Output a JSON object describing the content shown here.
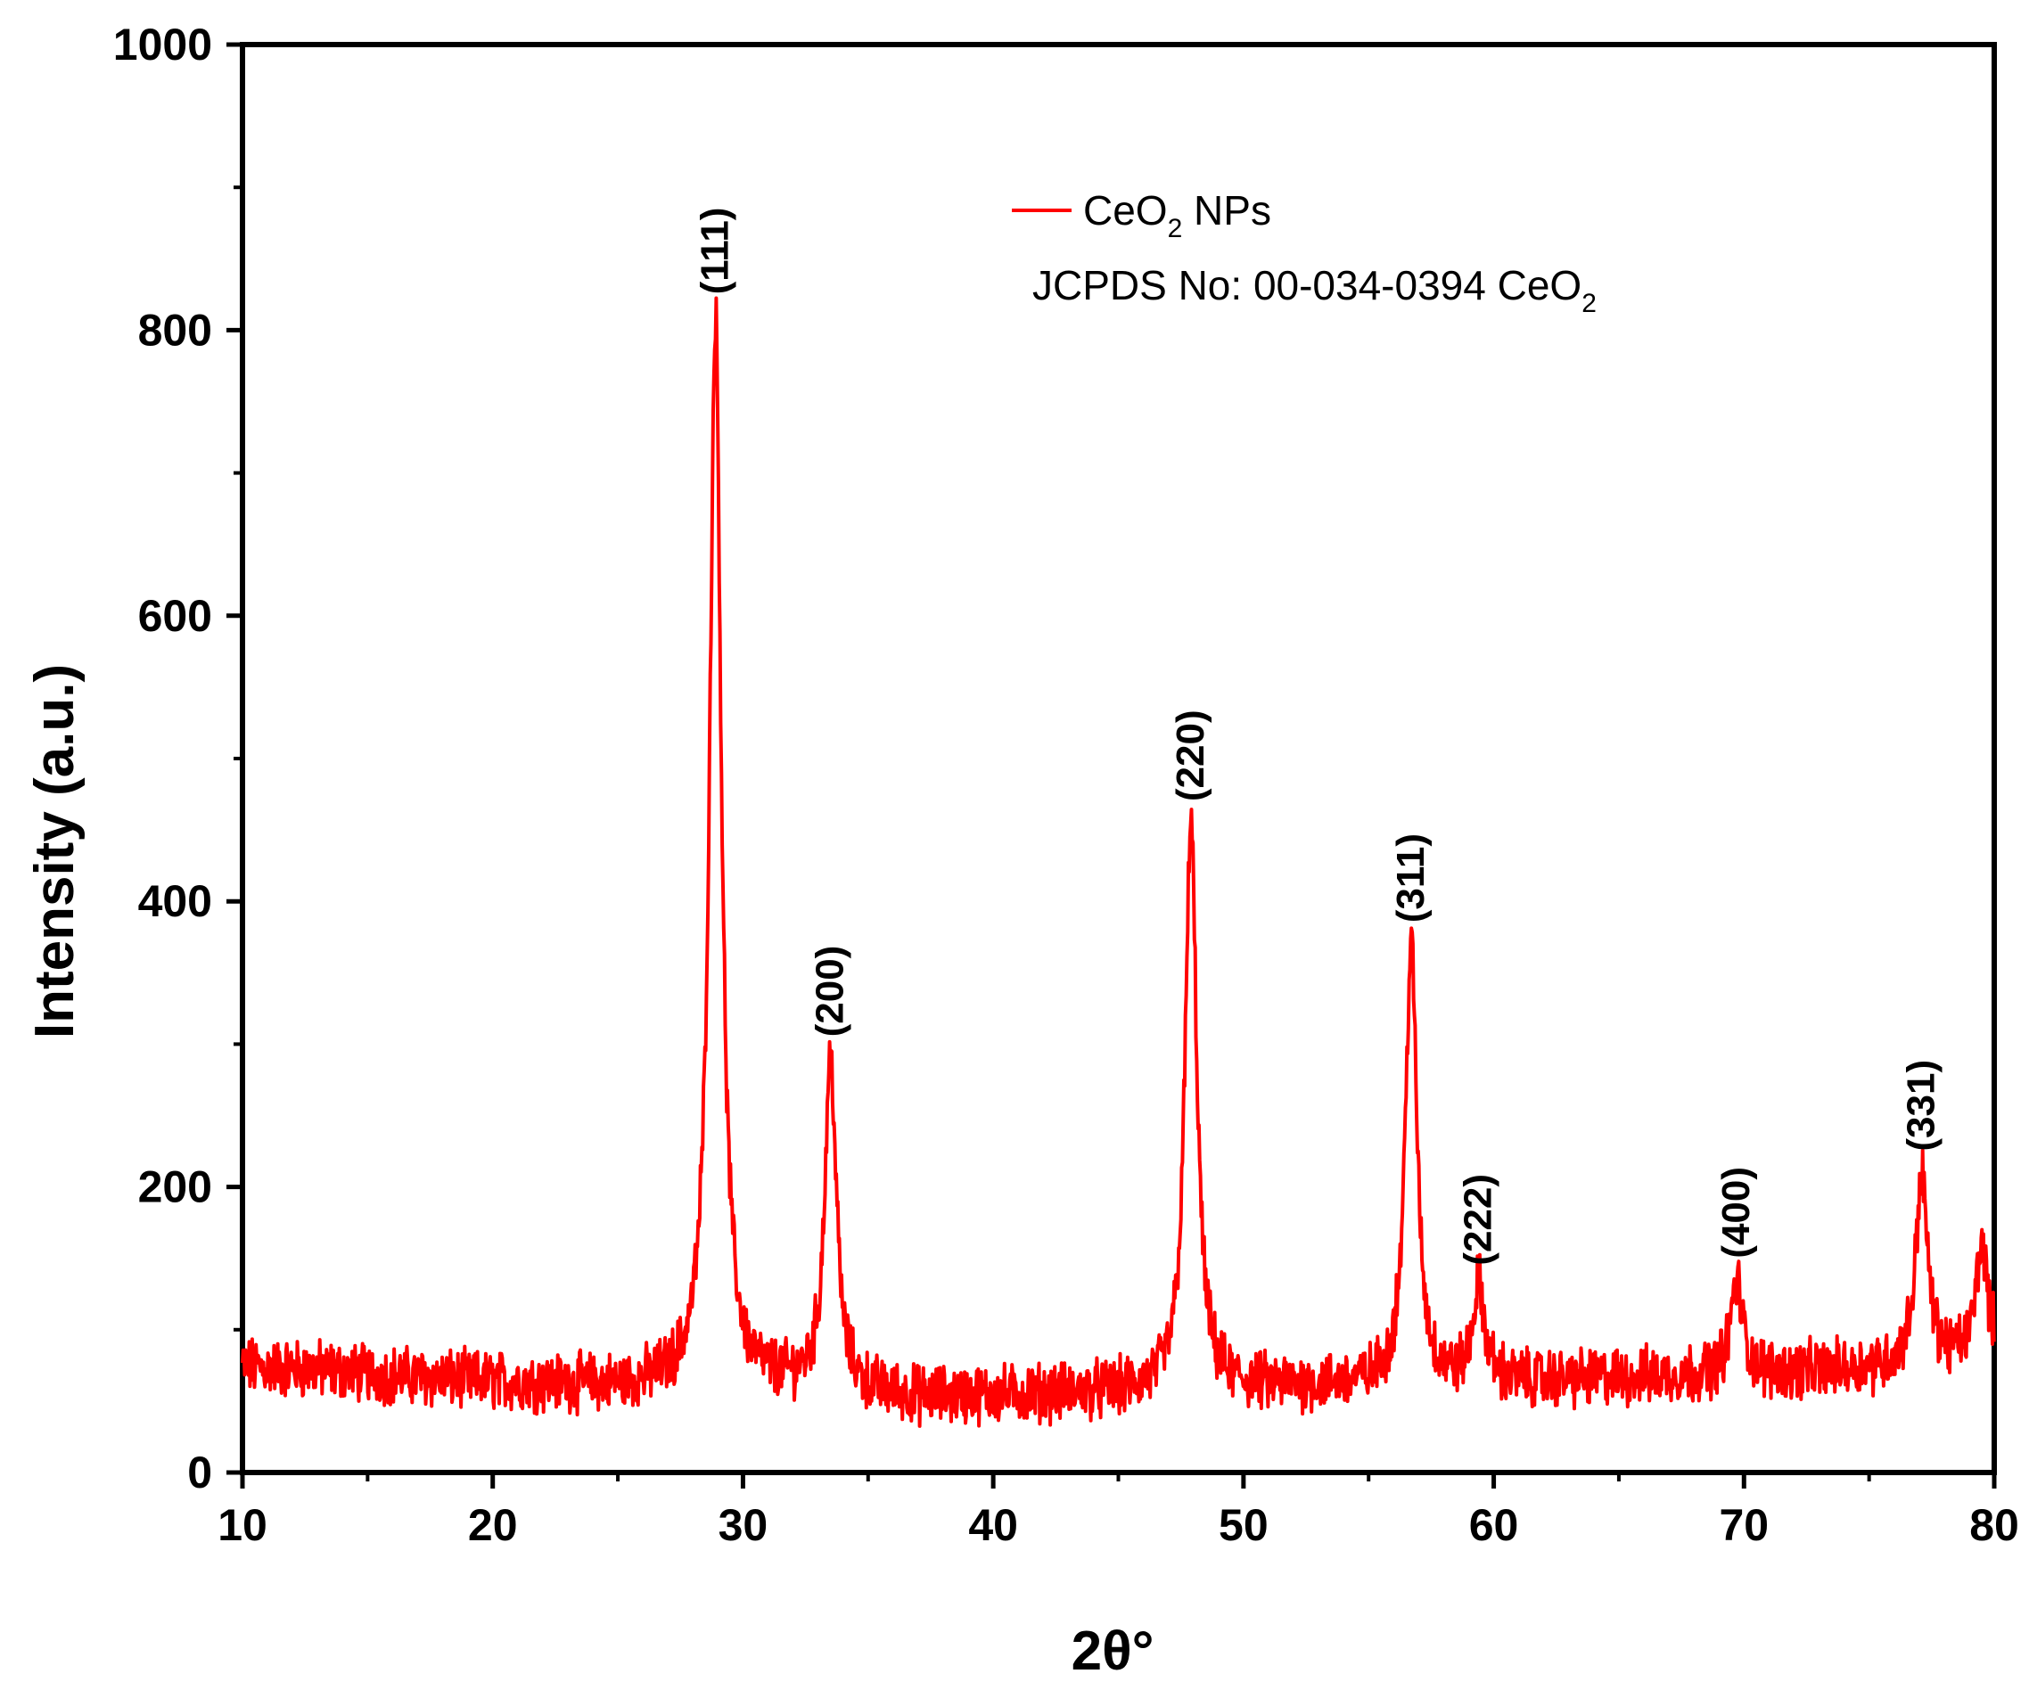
{
  "chart_data": {
    "type": "line",
    "xlabel": "2θ°",
    "ylabel": "Intensity (a.u.)",
    "xlim": [
      10,
      80
    ],
    "ylim": [
      0,
      1000
    ],
    "x_major_ticks": [
      10,
      20,
      30,
      40,
      50,
      60,
      70,
      80
    ],
    "x_tick_labels": [
      "10",
      "20",
      "30",
      "40",
      "50",
      "60",
      "70",
      "80"
    ],
    "y_major_ticks": [
      0,
      200,
      400,
      600,
      800,
      1000
    ],
    "y_tick_labels": [
      "0",
      "200",
      "400",
      "600",
      "800",
      "1000"
    ],
    "grid": false,
    "legend": {
      "placement": "top-center",
      "label_main": "CeO",
      "label_sub": "2",
      "label_rest": " NPs",
      "note_main": "JCPDS No: 00-034-0394 CeO",
      "note_sub": "2"
    },
    "series": [
      {
        "name": "CeO2 NPs",
        "color": "#ff0000",
        "baseline": [
          [
            10,
            74
          ],
          [
            13,
            72
          ],
          [
            18,
            65
          ],
          [
            25,
            60
          ],
          [
            28,
            62
          ],
          [
            32,
            60
          ],
          [
            37,
            52
          ],
          [
            45,
            56
          ],
          [
            52,
            60
          ],
          [
            58,
            62
          ],
          [
            62,
            64
          ],
          [
            68,
            68
          ],
          [
            72,
            70
          ],
          [
            76,
            74
          ],
          [
            80,
            82
          ]
        ],
        "peaks": [
          {
            "x": 28.9,
            "y": 810,
            "hkl": "(111)"
          },
          {
            "x": 33.5,
            "y": 290,
            "hkl": "(200)"
          },
          {
            "x": 47.9,
            "y": 455,
            "hkl": "(220)"
          },
          {
            "x": 56.7,
            "y": 370,
            "hkl": "(311)"
          },
          {
            "x": 59.4,
            "y": 130,
            "hkl": "(222)"
          },
          {
            "x": 69.7,
            "y": 135,
            "hkl": "(400)"
          },
          {
            "x": 77.1,
            "y": 210,
            "hkl": "(331)"
          },
          {
            "x": 79.5,
            "y": 160,
            "hkl": ""
          }
        ]
      }
    ]
  }
}
